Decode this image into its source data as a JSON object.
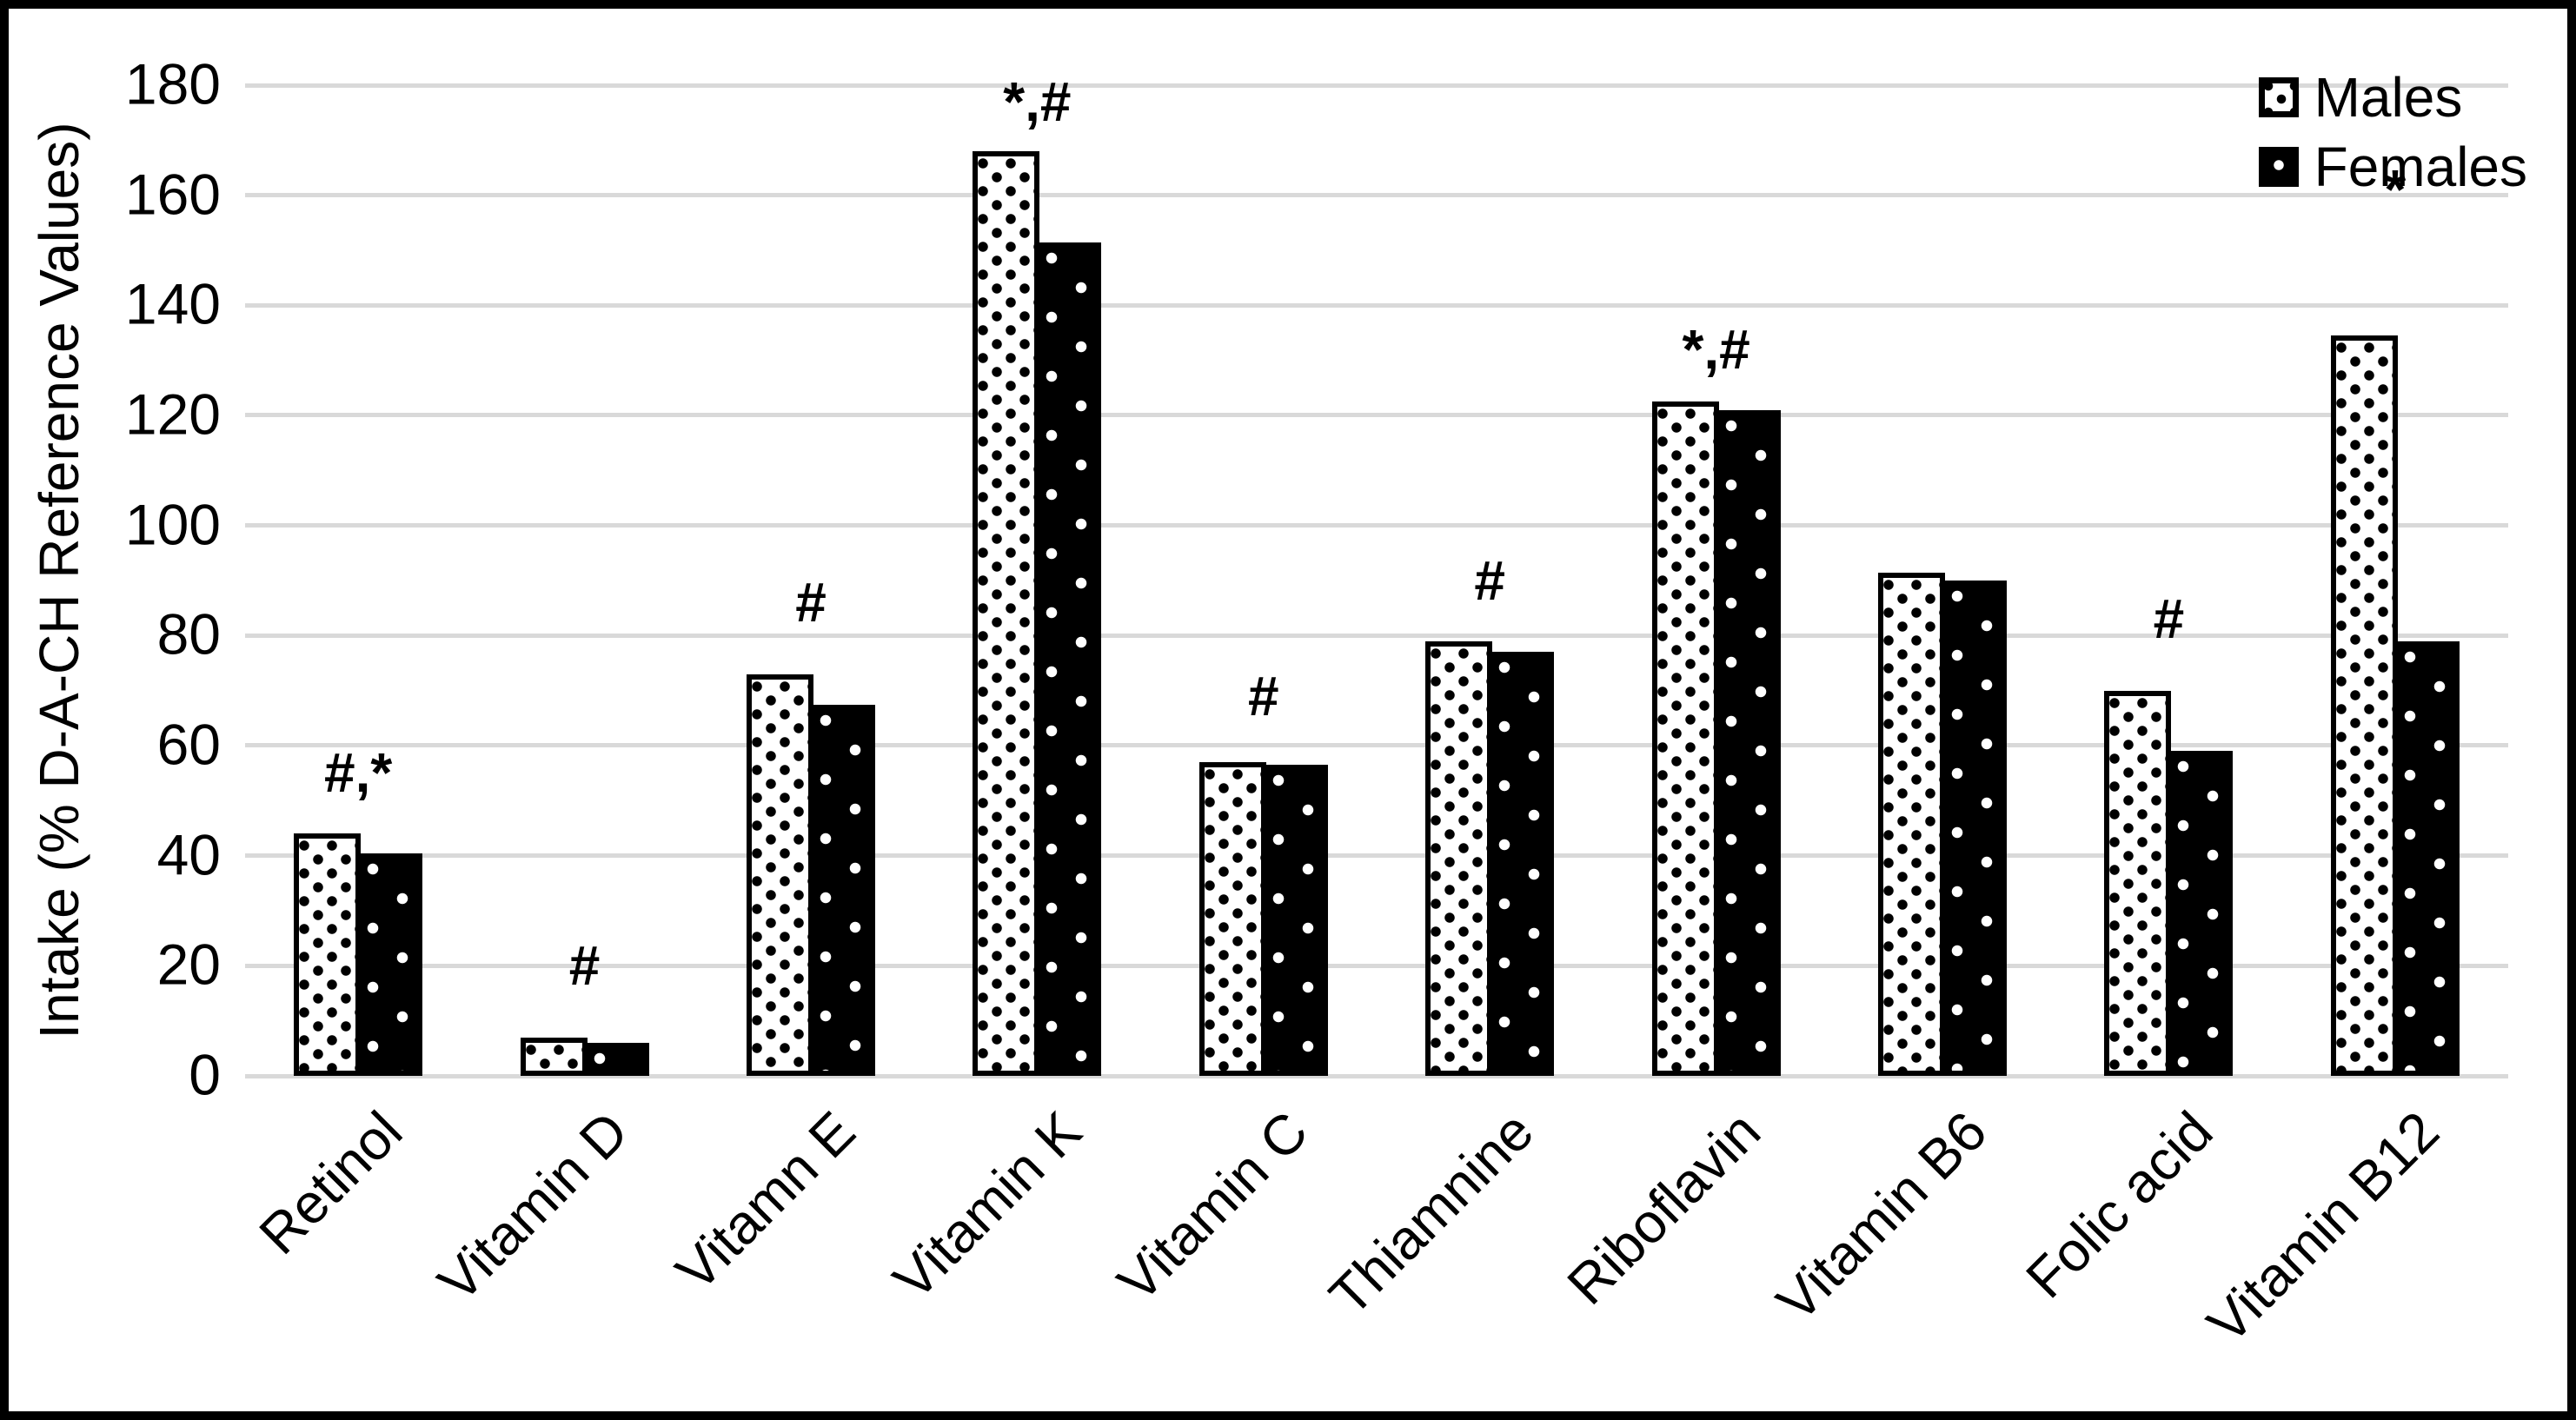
{
  "chart_data": {
    "type": "bar",
    "title": "",
    "xlabel": "",
    "ylabel": "Intake (% D-A-CH Reference Values)",
    "ylim": [
      0,
      180
    ],
    "yticks": [
      0,
      20,
      40,
      60,
      80,
      100,
      120,
      140,
      160,
      180
    ],
    "grid": true,
    "legend_position": "top-right-inside",
    "categories": [
      "Retinol",
      "Vitamin D",
      "Vitamn E",
      "Vitamin K",
      "Vitamin C",
      "Thiamnine",
      "Riboflavin",
      "Vitamin B6",
      "Folic acid",
      "Vitamin B12"
    ],
    "series": [
      {
        "name": "Males",
        "style": "white-with-black-dots",
        "values": [
          44,
          7,
          73,
          168,
          57,
          79,
          122.5,
          91.5,
          70,
          134.5
        ]
      },
      {
        "name": "Females",
        "style": "black-with-white-dots",
        "values": [
          40.5,
          6,
          67.5,
          151.5,
          56.5,
          77,
          121,
          90,
          59,
          79
        ]
      }
    ],
    "significance_annotations": [
      {
        "category": "Retinol",
        "label": "#,*",
        "y": 50
      },
      {
        "category": "Vitamin D",
        "label": "#",
        "y": 15
      },
      {
        "category": "Vitamn E",
        "label": "#",
        "y": 81
      },
      {
        "category": "Vitamin K",
        "label": "*,#",
        "y": 172
      },
      {
        "category": "Vitamin C",
        "label": "#",
        "y": 64
      },
      {
        "category": "Thiamnine",
        "label": "#",
        "y": 85
      },
      {
        "category": "Riboflavin",
        "label": "*,#",
        "y": 127
      },
      {
        "category": "Vitamin B6",
        "label": "",
        "y": null
      },
      {
        "category": "Folic acid",
        "label": "#",
        "y": 78
      },
      {
        "category": "Vitamin B12",
        "label": "*",
        "y": 156
      }
    ],
    "colors": {
      "bar_fill_males": "#ffffff",
      "bar_fill_females": "#000000",
      "bar_outline": "#000000",
      "gridline": "#d9d9d9",
      "background": "#ffffff",
      "text": "#000000"
    }
  }
}
